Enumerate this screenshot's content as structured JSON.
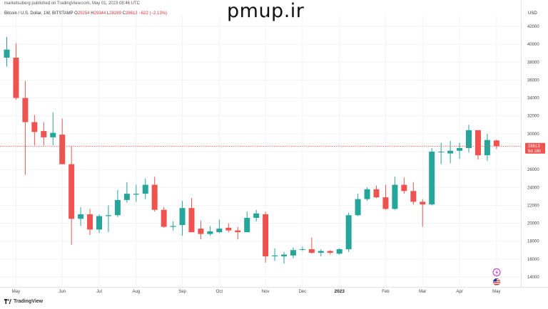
{
  "header": {
    "published_by": "marketsuberg published on TradingView.com, May 01, 2023 08:46 UTC"
  },
  "watermark": "pmup.ir",
  "symbol": {
    "name": "Bitcoin / U.S. Dollar, 1W, BITSTAMP",
    "o_label": "O",
    "o_value": "29254",
    "h_label": "H",
    "h_value": "29344",
    "l_label": "L",
    "l_value": "28289",
    "c_label": "C",
    "c_value": "28613",
    "change": "−622 (−2.13%)"
  },
  "currency": "USD",
  "last_price": {
    "value": "28613",
    "countdown": "6d 16h"
  },
  "footer": {
    "brand": "TradingView"
  },
  "colors": {
    "up": "#26a69a",
    "down": "#ef5350",
    "price_line": "#ef5350",
    "text": "#444444"
  },
  "icons": [
    "lightning-icon",
    "us-flag-icon",
    "tradingview-logo-icon"
  ],
  "chart_data": {
    "type": "candlestick",
    "title": "Bitcoin / U.S. Dollar, 1W, BITSTAMP",
    "ylabel": "USD",
    "ylim": [
      13000,
      43500
    ],
    "y_ticks": [
      14000,
      16000,
      18000,
      20000,
      22000,
      24000,
      26000,
      28000,
      30000,
      32000,
      34000,
      36000,
      38000,
      40000,
      42000
    ],
    "y_tick_labels": [
      "14000",
      "16000",
      "18000",
      "20000",
      "22000",
      "24000",
      "26000",
      "28000",
      "30000",
      "32000",
      "34000",
      "36000",
      "38000",
      "40000",
      "42000"
    ],
    "x_tick_labels": [
      {
        "label": "May",
        "index": 1
      },
      {
        "label": "Jun",
        "index": 6
      },
      {
        "label": "Jul",
        "index": 10
      },
      {
        "label": "Aug",
        "index": 14
      },
      {
        "label": "Sep",
        "index": 19
      },
      {
        "label": "Oct",
        "index": 23
      },
      {
        "label": "Nov",
        "index": 28
      },
      {
        "label": "Dec",
        "index": 32
      },
      {
        "label": "2023",
        "index": 36,
        "bold": true
      },
      {
        "label": "Feb",
        "index": 41
      },
      {
        "label": "Mar",
        "index": 45
      },
      {
        "label": "Apr",
        "index": 49
      },
      {
        "label": "May",
        "index": 53
      }
    ],
    "last_price": 28613,
    "candles": [
      {
        "o": 38500,
        "h": 40800,
        "l": 37500,
        "c": 39400
      },
      {
        "o": 38500,
        "h": 40100,
        "l": 33800,
        "c": 34000
      },
      {
        "o": 34000,
        "h": 35900,
        "l": 25400,
        "c": 31300
      },
      {
        "o": 31300,
        "h": 32100,
        "l": 28700,
        "c": 30200
      },
      {
        "o": 30300,
        "h": 31300,
        "l": 28700,
        "c": 29600
      },
      {
        "o": 29600,
        "h": 32400,
        "l": 28700,
        "c": 30100
      },
      {
        "o": 29900,
        "h": 31700,
        "l": 26600,
        "c": 26600
      },
      {
        "o": 26600,
        "h": 28600,
        "l": 17600,
        "c": 20500
      },
      {
        "o": 20500,
        "h": 21800,
        "l": 19700,
        "c": 21000
      },
      {
        "o": 21000,
        "h": 21600,
        "l": 18700,
        "c": 19300
      },
      {
        "o": 19300,
        "h": 21000,
        "l": 18900,
        "c": 20800
      },
      {
        "o": 20800,
        "h": 22000,
        "l": 19000,
        "c": 20900
      },
      {
        "o": 20900,
        "h": 23700,
        "l": 20700,
        "c": 22600
      },
      {
        "o": 22600,
        "h": 24600,
        "l": 22300,
        "c": 23300
      },
      {
        "o": 23200,
        "h": 24300,
        "l": 22400,
        "c": 23300
      },
      {
        "o": 23300,
        "h": 25000,
        "l": 22700,
        "c": 24300
      },
      {
        "o": 24300,
        "h": 25200,
        "l": 21300,
        "c": 21500
      },
      {
        "o": 21500,
        "h": 21800,
        "l": 19500,
        "c": 19600
      },
      {
        "o": 19600,
        "h": 20200,
        "l": 19200,
        "c": 19700
      },
      {
        "o": 19800,
        "h": 22500,
        "l": 18600,
        "c": 21700
      },
      {
        "o": 21700,
        "h": 22800,
        "l": 19000,
        "c": 19000
      },
      {
        "o": 19400,
        "h": 20300,
        "l": 18200,
        "c": 18800
      },
      {
        "o": 18800,
        "h": 19700,
        "l": 18600,
        "c": 19100
      },
      {
        "o": 19000,
        "h": 20400,
        "l": 18900,
        "c": 19400
      },
      {
        "o": 19500,
        "h": 20000,
        "l": 19000,
        "c": 19200
      },
      {
        "o": 19200,
        "h": 19600,
        "l": 18200,
        "c": 19000
      },
      {
        "o": 19000,
        "h": 21300,
        "l": 19000,
        "c": 20600
      },
      {
        "o": 20600,
        "h": 21500,
        "l": 20200,
        "c": 21100
      },
      {
        "o": 21000,
        "h": 21300,
        "l": 15600,
        "c": 16300
      },
      {
        "o": 16300,
        "h": 17200,
        "l": 15800,
        "c": 16400
      },
      {
        "o": 16300,
        "h": 16800,
        "l": 15500,
        "c": 16500
      },
      {
        "o": 16400,
        "h": 17300,
        "l": 16100,
        "c": 17000
      },
      {
        "o": 17100,
        "h": 17400,
        "l": 16900,
        "c": 17100
      },
      {
        "o": 17100,
        "h": 18400,
        "l": 16600,
        "c": 16700
      },
      {
        "o": 16700,
        "h": 17100,
        "l": 16300,
        "c": 16900
      },
      {
        "o": 16900,
        "h": 17000,
        "l": 16500,
        "c": 16700
      },
      {
        "o": 16600,
        "h": 17200,
        "l": 16500,
        "c": 17100
      },
      {
        "o": 17100,
        "h": 21200,
        "l": 16800,
        "c": 20900
      },
      {
        "o": 20900,
        "h": 23300,
        "l": 20800,
        "c": 22700
      },
      {
        "o": 22700,
        "h": 24000,
        "l": 22500,
        "c": 23800
      },
      {
        "o": 23800,
        "h": 24200,
        "l": 22800,
        "c": 22900
      },
      {
        "o": 22900,
        "h": 24300,
        "l": 21500,
        "c": 21600
      },
      {
        "o": 21600,
        "h": 25200,
        "l": 21500,
        "c": 24300
      },
      {
        "o": 24300,
        "h": 25100,
        "l": 23300,
        "c": 23600
      },
      {
        "o": 23600,
        "h": 24600,
        "l": 22100,
        "c": 22400
      },
      {
        "o": 22400,
        "h": 22700,
        "l": 19600,
        "c": 22100
      },
      {
        "o": 22100,
        "h": 28400,
        "l": 22000,
        "c": 28000
      },
      {
        "o": 28000,
        "h": 29000,
        "l": 26600,
        "c": 28000
      },
      {
        "o": 27800,
        "h": 29200,
        "l": 26700,
        "c": 28100
      },
      {
        "o": 28100,
        "h": 29000,
        "l": 27200,
        "c": 28400
      },
      {
        "o": 28400,
        "h": 31000,
        "l": 27900,
        "c": 30400
      },
      {
        "o": 30400,
        "h": 30400,
        "l": 27100,
        "c": 27600
      },
      {
        "o": 27600,
        "h": 30000,
        "l": 27000,
        "c": 29300
      },
      {
        "o": 29254,
        "h": 29344,
        "l": 28289,
        "c": 28613
      }
    ]
  }
}
